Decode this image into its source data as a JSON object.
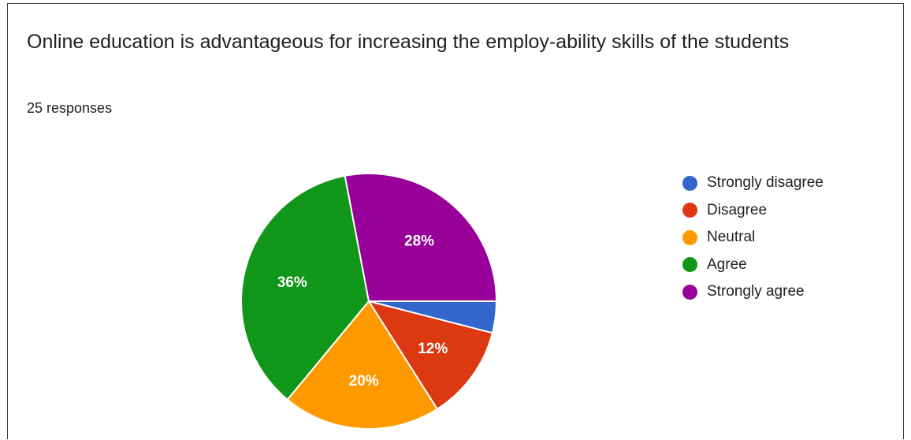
{
  "title": "Online education is advantageous for increasing the employ-ability skills of the students",
  "responses": "25 responses",
  "chart_data": {
    "type": "pie",
    "categories": [
      "Strongly disagree",
      "Disagree",
      "Neutral",
      "Agree",
      "Strongly agree"
    ],
    "values": [
      4,
      12,
      20,
      36,
      28
    ],
    "value_labels": [
      "",
      "12%",
      "20%",
      "36%",
      "28%"
    ],
    "colors": [
      "#3366cc",
      "#dc3912",
      "#ff9900",
      "#109618",
      "#990099"
    ],
    "legend_position": "right"
  }
}
